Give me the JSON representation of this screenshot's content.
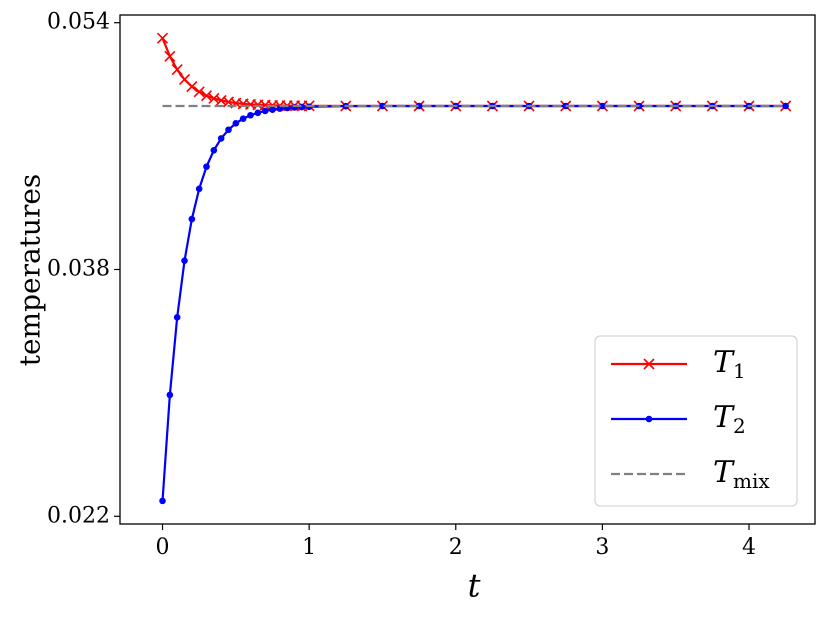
{
  "chart_data": {
    "type": "line",
    "xlabel": "t",
    "ylabel": "temperatures",
    "x": [
      0,
      0.05,
      0.1,
      0.15,
      0.2,
      0.25,
      0.3,
      0.35,
      0.4,
      0.45,
      0.5,
      0.55,
      0.6,
      0.65,
      0.7,
      0.75,
      0.8,
      0.85,
      0.9,
      0.95,
      1.0,
      1.25,
      1.5,
      1.75,
      2.0,
      2.25,
      2.5,
      2.75,
      3.0,
      3.25,
      3.5,
      3.75,
      4.0,
      4.25
    ],
    "series": [
      {
        "name": "T1",
        "color": "#ff0000",
        "marker": "x",
        "values": [
          0.053,
          0.05182,
          0.05096,
          0.05032,
          0.04986,
          0.04952,
          0.04927,
          0.04909,
          0.04896,
          0.04886,
          0.04879,
          0.04874,
          0.0487,
          0.04868,
          0.04866,
          0.04864,
          0.04863,
          0.04862,
          0.04862,
          0.04861,
          0.04861,
          0.0486,
          0.0486,
          0.0486,
          0.0486,
          0.0486,
          0.0486,
          0.0486,
          0.0486,
          0.0486,
          0.0486,
          0.0486,
          0.0486,
          0.0486
        ]
      },
      {
        "name": "T2",
        "color": "#0000ff",
        "marker": "dot",
        "values": [
          0.023,
          0.02987,
          0.0349,
          0.03857,
          0.04127,
          0.04323,
          0.04467,
          0.04573,
          0.0465,
          0.04706,
          0.04748,
          0.04778,
          0.048,
          0.04816,
          0.04828,
          0.04836,
          0.04843,
          0.04847,
          0.04851,
          0.04853,
          0.04855,
          0.04859,
          0.0486,
          0.0486,
          0.0486,
          0.0486,
          0.0486,
          0.0486,
          0.0486,
          0.0486,
          0.0486,
          0.0486,
          0.0486,
          0.0486
        ]
      },
      {
        "name": "Tmix",
        "color": "#808080",
        "dashed": true,
        "x": [
          0,
          4.25
        ],
        "values": [
          0.0486,
          0.0486
        ]
      }
    ],
    "xlim": [
      -0.29,
      4.45
    ],
    "ylim": [
      0.0215,
      0.0545
    ],
    "xticks": [
      0,
      1,
      2,
      3,
      4
    ],
    "yticks": [
      0.022,
      0.038,
      0.054
    ],
    "legend": "lower right"
  }
}
